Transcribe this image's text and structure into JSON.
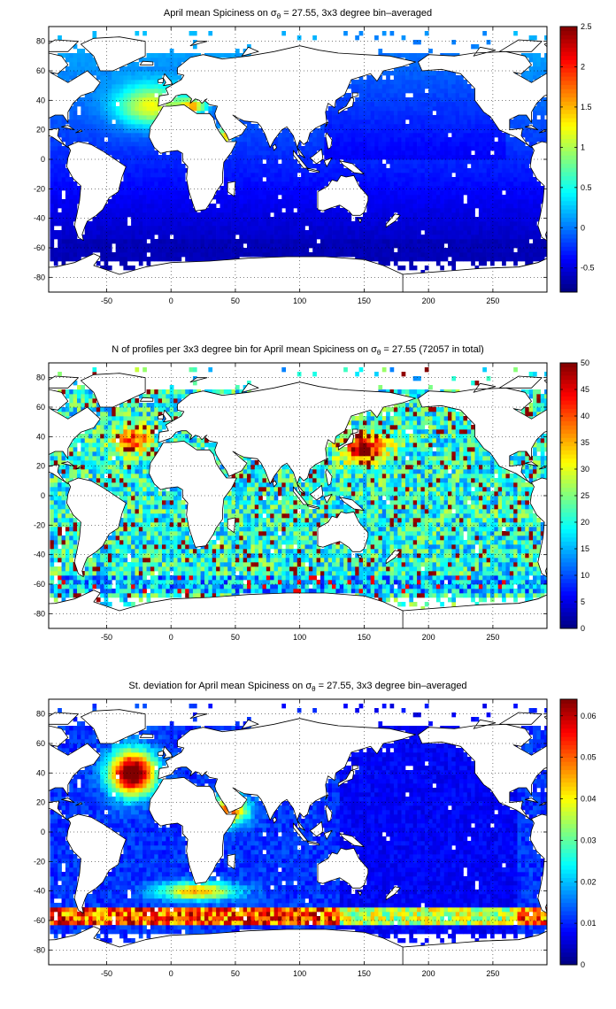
{
  "chart_data": [
    {
      "type": "heatmap",
      "title": "April mean Spiciness on σθ = 27.55, 3x3 degree bin–averaged",
      "title_parts": [
        "April mean Spiciness on σ",
        "θ",
        " = 27.55, 3x3 degree bin–averaged"
      ],
      "xlim": [
        -95,
        292
      ],
      "ylim": [
        -90,
        90
      ],
      "xticks": [
        -50,
        0,
        50,
        100,
        150,
        200,
        250
      ],
      "yticks": [
        80,
        60,
        40,
        20,
        0,
        -20,
        -40,
        -60,
        -80
      ],
      "colorbar": {
        "min": -0.8,
        "max": 2.5,
        "ticks": [
          2.5,
          2,
          1.5,
          1,
          0.5,
          0,
          -0.5
        ]
      },
      "grid": true,
      "colormap": "jet",
      "field": "spice"
    },
    {
      "type": "heatmap",
      "title": "N of profiles per 3x3 degree bin for April mean Spiciness on σθ = 27.55 (72057 in total)",
      "title_parts": [
        "N of profiles per 3x3 degree bin for April mean Spiciness on σ",
        "θ",
        " = 27.55 (72057 in total)"
      ],
      "xlim": [
        -95,
        292
      ],
      "ylim": [
        -90,
        90
      ],
      "xticks": [
        -50,
        0,
        50,
        100,
        150,
        200,
        250
      ],
      "yticks": [
        80,
        60,
        40,
        20,
        0,
        -20,
        -40,
        -60,
        -80
      ],
      "colorbar": {
        "min": 0,
        "max": 50,
        "ticks": [
          50,
          45,
          40,
          35,
          30,
          25,
          20,
          15,
          10,
          5,
          0
        ]
      },
      "grid": true,
      "colormap": "jet",
      "field": "count"
    },
    {
      "type": "heatmap",
      "title": "St. deviation for April mean Spiciness on σθ = 27.55, 3x3 degree bin–averaged",
      "title_parts": [
        "St. deviation for April mean Spiciness on σ",
        "θ",
        " = 27.55, 3x3 degree bin–averaged"
      ],
      "xlim": [
        -95,
        292
      ],
      "ylim": [
        -90,
        90
      ],
      "xticks": [
        -50,
        0,
        50,
        100,
        150,
        200,
        250
      ],
      "yticks": [
        80,
        60,
        40,
        20,
        0,
        -20,
        -40,
        -60,
        -80
      ],
      "colorbar": {
        "min": 0,
        "max": 0.064,
        "ticks": [
          0.06,
          0.05,
          0.04,
          0.03,
          0.02,
          0.01,
          0
        ]
      },
      "grid": true,
      "colormap": "jet",
      "field": "std"
    }
  ]
}
